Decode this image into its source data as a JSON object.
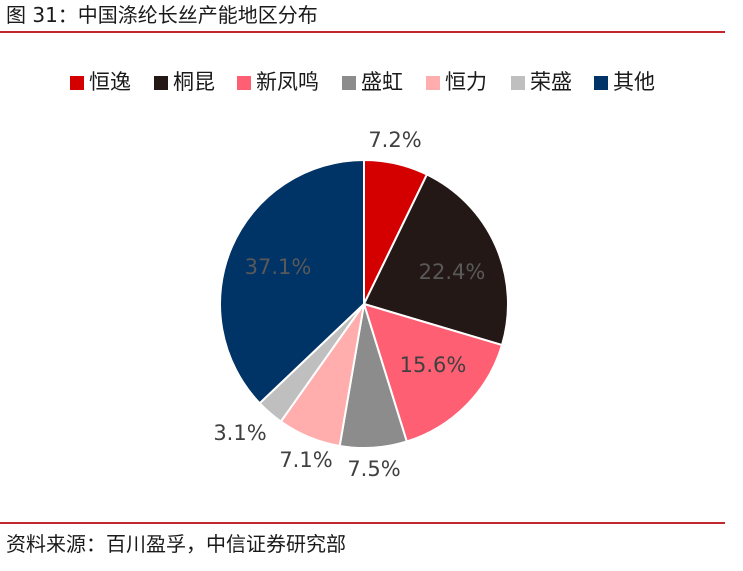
{
  "header": {
    "title": "图 31：中国涤纶长丝产能地区分布"
  },
  "footer": {
    "source": "资料来源：百川盈孚，中信证券研究部"
  },
  "chart_data": {
    "type": "pie",
    "title": "",
    "legend_position": "top",
    "start_angle": "12 o'clock, clockwise",
    "slices": [
      {
        "name": "恒逸",
        "value": 7.2,
        "label": "7.2%",
        "color": "#d40000",
        "label_color": "#404040"
      },
      {
        "name": "桐昆",
        "value": 22.4,
        "label": "22.4%",
        "color": "#231815",
        "label_color": "#595959"
      },
      {
        "name": "新凤鸣",
        "value": 15.6,
        "label": "15.6%",
        "color": "#ff5f73",
        "label_color": "#404040"
      },
      {
        "name": "盛虹",
        "value": 7.5,
        "label": "7.5%",
        "color": "#8c8c8c",
        "label_color": "#404040"
      },
      {
        "name": "恒力",
        "value": 7.1,
        "label": "7.1%",
        "color": "#ffadad",
        "label_color": "#404040"
      },
      {
        "name": "荣盛",
        "value": 3.1,
        "label": "3.1%",
        "color": "#bfbfbf",
        "label_color": "#404040"
      },
      {
        "name": "其他",
        "value": 37.1,
        "label": "37.1%",
        "color": "#003366",
        "label_color": "#595959"
      }
    ]
  }
}
